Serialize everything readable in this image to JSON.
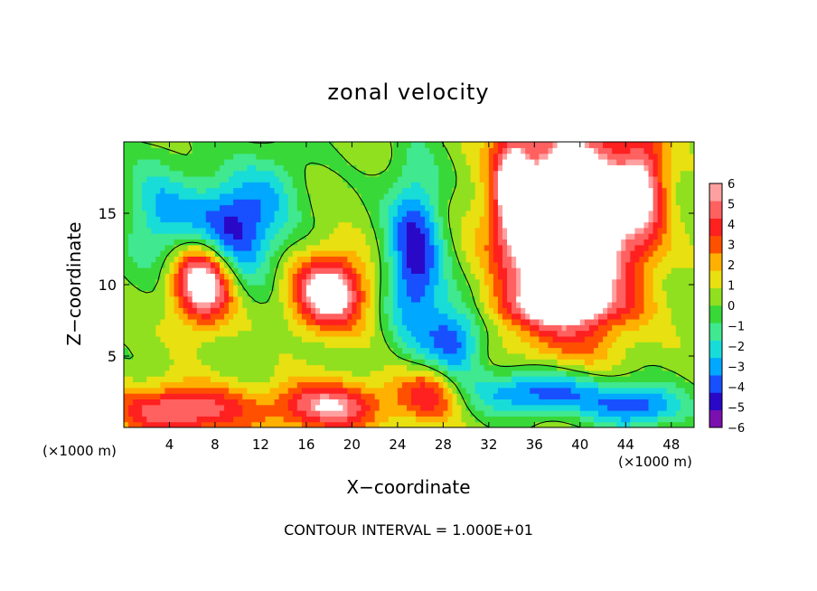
{
  "chart_data": {
    "type": "heatmap",
    "title": "zonal velocity",
    "xlabel": "X−coordinate",
    "ylabel": "Z−coordinate",
    "x_unit_note": "(×1000 m)",
    "footer": "CONTOUR INTERVAL = 1.000E+01",
    "xlim": [
      0,
      50
    ],
    "ylim": [
      0,
      20
    ],
    "x_ticks": [
      4,
      8,
      12,
      16,
      20,
      24,
      28,
      32,
      36,
      40,
      44,
      48
    ],
    "y_ticks": [
      5,
      10,
      15
    ],
    "colorbar": {
      "ticks": [
        "6",
        "5",
        "4",
        "3",
        "2",
        "1",
        "0",
        "−1",
        "−2",
        "−3",
        "−4",
        "−5",
        "−6"
      ],
      "colors": [
        "#7a10b0",
        "#2a08c8",
        "#1850ff",
        "#00a8ff",
        "#18dcd8",
        "#40e890",
        "#38d838",
        "#90e020",
        "#e8e010",
        "#ffb000",
        "#ff5000",
        "#ff2020",
        "#ff6060",
        "#ffa0a0"
      ]
    },
    "features": [
      {
        "type": "negative",
        "cx": 9,
        "cy": 13.5,
        "rx": 4,
        "ry": 3.5,
        "amp": -7
      },
      {
        "type": "negative",
        "cx": 25.5,
        "cy": 12,
        "rx": 2.5,
        "ry": 6,
        "amp": -6
      },
      {
        "type": "negative",
        "cx": 29,
        "cy": 6,
        "rx": 2.5,
        "ry": 3,
        "amp": -5
      },
      {
        "type": "negative",
        "cx": 36.5,
        "cy": 2.5,
        "rx": 6,
        "ry": 1.6,
        "amp": -5.5
      },
      {
        "type": "negative",
        "cx": 45,
        "cy": 1.5,
        "rx": 4,
        "ry": 1.5,
        "amp": -5
      },
      {
        "type": "negative",
        "cx": 3,
        "cy": 15,
        "rx": 3,
        "ry": 4,
        "amp": -3
      },
      {
        "type": "negative",
        "cx": 13,
        "cy": 17,
        "rx": 3,
        "ry": 3,
        "amp": -2
      },
      {
        "type": "positive",
        "cx": 18,
        "cy": 9.5,
        "rx": 3.2,
        "ry": 2.6,
        "amp": 8
      },
      {
        "type": "positive",
        "cx": 39,
        "cy": 14,
        "rx": 5.5,
        "ry": 7,
        "amp": 12
      },
      {
        "type": "positive",
        "cx": 7,
        "cy": 10.5,
        "rx": 2.7,
        "ry": 3,
        "amp": 10
      },
      {
        "type": "positive",
        "cx": 5,
        "cy": 1.2,
        "rx": 6,
        "ry": 1.8,
        "amp": 6
      },
      {
        "type": "positive",
        "cx": 18,
        "cy": 1.5,
        "rx": 5,
        "ry": 1.8,
        "amp": 6
      },
      {
        "type": "positive",
        "cx": 27,
        "cy": 2.5,
        "rx": 3,
        "ry": 2,
        "amp": 5
      },
      {
        "type": "positive",
        "cx": 34,
        "cy": 17,
        "rx": 1.5,
        "ry": 4,
        "amp": 5
      },
      {
        "type": "positive",
        "cx": 45.5,
        "cy": 17,
        "rx": 2,
        "ry": 4,
        "amp": 5
      },
      {
        "type": "positive",
        "cx": 38,
        "cy": 8.5,
        "rx": 6,
        "ry": 1.3,
        "amp": 3
      }
    ]
  }
}
